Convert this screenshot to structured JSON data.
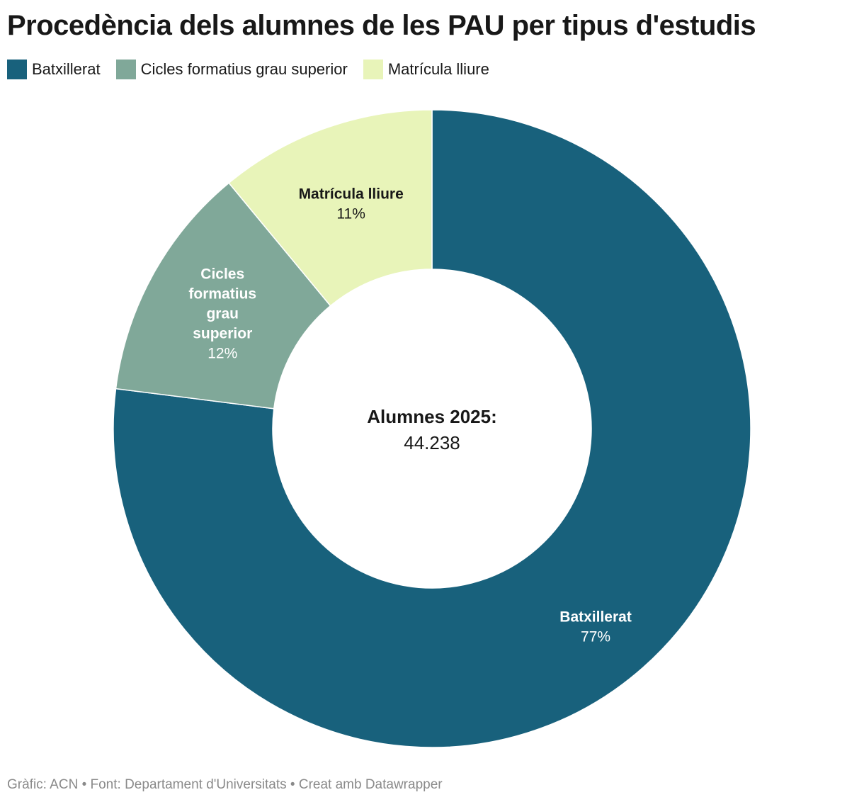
{
  "chart_data": {
    "type": "pie",
    "variant": "donut",
    "title": "Procedència dels alumnes de les PAU per tipus d'estudis",
    "categories": [
      "Batxillerat",
      "Cicles formatius grau superior",
      "Matrícula lliure"
    ],
    "values": [
      77,
      12,
      11
    ],
    "value_labels": [
      "77%",
      "12%",
      "11%"
    ],
    "unit": "%",
    "colors": [
      "#18617c",
      "#80a899",
      "#e8f4b9"
    ],
    "label_colors": [
      "#ffffff",
      "#ffffff",
      "#181818"
    ],
    "slice_labels": [
      [
        "Batxillerat"
      ],
      [
        "Cicles",
        "formatius",
        "grau",
        "superior"
      ],
      [
        "Matrícula lliure"
      ]
    ],
    "legend": "top-left",
    "center_label": {
      "title": "Alumnes 2025:",
      "value": "44.238"
    }
  },
  "footer": "Gràfic: ACN • Font: Departament d'Universitats • Creat amb Datawrapper"
}
